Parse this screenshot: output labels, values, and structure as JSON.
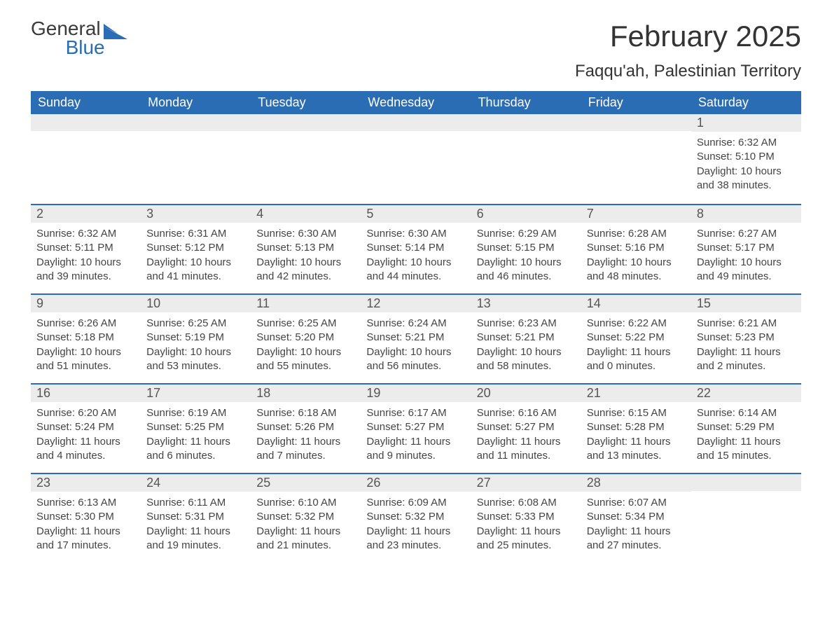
{
  "logo": {
    "word1": "General",
    "word2": "Blue"
  },
  "title": "February 2025",
  "location": "Faqqu'ah, Palestinian Territory",
  "colors": {
    "header_bg": "#2a6db5",
    "header_text": "#ffffff",
    "strip_bg": "#ececec",
    "logo_blue": "#2a6db5",
    "text": "#333333"
  },
  "day_names": [
    "Sunday",
    "Monday",
    "Tuesday",
    "Wednesday",
    "Thursday",
    "Friday",
    "Saturday"
  ],
  "weeks": [
    [
      null,
      null,
      null,
      null,
      null,
      null,
      {
        "d": "1",
        "sr": "Sunrise: 6:32 AM",
        "ss": "Sunset: 5:10 PM",
        "dl": "Daylight: 10 hours and 38 minutes."
      }
    ],
    [
      {
        "d": "2",
        "sr": "Sunrise: 6:32 AM",
        "ss": "Sunset: 5:11 PM",
        "dl": "Daylight: 10 hours and 39 minutes."
      },
      {
        "d": "3",
        "sr": "Sunrise: 6:31 AM",
        "ss": "Sunset: 5:12 PM",
        "dl": "Daylight: 10 hours and 41 minutes."
      },
      {
        "d": "4",
        "sr": "Sunrise: 6:30 AM",
        "ss": "Sunset: 5:13 PM",
        "dl": "Daylight: 10 hours and 42 minutes."
      },
      {
        "d": "5",
        "sr": "Sunrise: 6:30 AM",
        "ss": "Sunset: 5:14 PM",
        "dl": "Daylight: 10 hours and 44 minutes."
      },
      {
        "d": "6",
        "sr": "Sunrise: 6:29 AM",
        "ss": "Sunset: 5:15 PM",
        "dl": "Daylight: 10 hours and 46 minutes."
      },
      {
        "d": "7",
        "sr": "Sunrise: 6:28 AM",
        "ss": "Sunset: 5:16 PM",
        "dl": "Daylight: 10 hours and 48 minutes."
      },
      {
        "d": "8",
        "sr": "Sunrise: 6:27 AM",
        "ss": "Sunset: 5:17 PM",
        "dl": "Daylight: 10 hours and 49 minutes."
      }
    ],
    [
      {
        "d": "9",
        "sr": "Sunrise: 6:26 AM",
        "ss": "Sunset: 5:18 PM",
        "dl": "Daylight: 10 hours and 51 minutes."
      },
      {
        "d": "10",
        "sr": "Sunrise: 6:25 AM",
        "ss": "Sunset: 5:19 PM",
        "dl": "Daylight: 10 hours and 53 minutes."
      },
      {
        "d": "11",
        "sr": "Sunrise: 6:25 AM",
        "ss": "Sunset: 5:20 PM",
        "dl": "Daylight: 10 hours and 55 minutes."
      },
      {
        "d": "12",
        "sr": "Sunrise: 6:24 AM",
        "ss": "Sunset: 5:21 PM",
        "dl": "Daylight: 10 hours and 56 minutes."
      },
      {
        "d": "13",
        "sr": "Sunrise: 6:23 AM",
        "ss": "Sunset: 5:21 PM",
        "dl": "Daylight: 10 hours and 58 minutes."
      },
      {
        "d": "14",
        "sr": "Sunrise: 6:22 AM",
        "ss": "Sunset: 5:22 PM",
        "dl": "Daylight: 11 hours and 0 minutes."
      },
      {
        "d": "15",
        "sr": "Sunrise: 6:21 AM",
        "ss": "Sunset: 5:23 PM",
        "dl": "Daylight: 11 hours and 2 minutes."
      }
    ],
    [
      {
        "d": "16",
        "sr": "Sunrise: 6:20 AM",
        "ss": "Sunset: 5:24 PM",
        "dl": "Daylight: 11 hours and 4 minutes."
      },
      {
        "d": "17",
        "sr": "Sunrise: 6:19 AM",
        "ss": "Sunset: 5:25 PM",
        "dl": "Daylight: 11 hours and 6 minutes."
      },
      {
        "d": "18",
        "sr": "Sunrise: 6:18 AM",
        "ss": "Sunset: 5:26 PM",
        "dl": "Daylight: 11 hours and 7 minutes."
      },
      {
        "d": "19",
        "sr": "Sunrise: 6:17 AM",
        "ss": "Sunset: 5:27 PM",
        "dl": "Daylight: 11 hours and 9 minutes."
      },
      {
        "d": "20",
        "sr": "Sunrise: 6:16 AM",
        "ss": "Sunset: 5:27 PM",
        "dl": "Daylight: 11 hours and 11 minutes."
      },
      {
        "d": "21",
        "sr": "Sunrise: 6:15 AM",
        "ss": "Sunset: 5:28 PM",
        "dl": "Daylight: 11 hours and 13 minutes."
      },
      {
        "d": "22",
        "sr": "Sunrise: 6:14 AM",
        "ss": "Sunset: 5:29 PM",
        "dl": "Daylight: 11 hours and 15 minutes."
      }
    ],
    [
      {
        "d": "23",
        "sr": "Sunrise: 6:13 AM",
        "ss": "Sunset: 5:30 PM",
        "dl": "Daylight: 11 hours and 17 minutes."
      },
      {
        "d": "24",
        "sr": "Sunrise: 6:11 AM",
        "ss": "Sunset: 5:31 PM",
        "dl": "Daylight: 11 hours and 19 minutes."
      },
      {
        "d": "25",
        "sr": "Sunrise: 6:10 AM",
        "ss": "Sunset: 5:32 PM",
        "dl": "Daylight: 11 hours and 21 minutes."
      },
      {
        "d": "26",
        "sr": "Sunrise: 6:09 AM",
        "ss": "Sunset: 5:32 PM",
        "dl": "Daylight: 11 hours and 23 minutes."
      },
      {
        "d": "27",
        "sr": "Sunrise: 6:08 AM",
        "ss": "Sunset: 5:33 PM",
        "dl": "Daylight: 11 hours and 25 minutes."
      },
      {
        "d": "28",
        "sr": "Sunrise: 6:07 AM",
        "ss": "Sunset: 5:34 PM",
        "dl": "Daylight: 11 hours and 27 minutes."
      },
      null
    ]
  ]
}
